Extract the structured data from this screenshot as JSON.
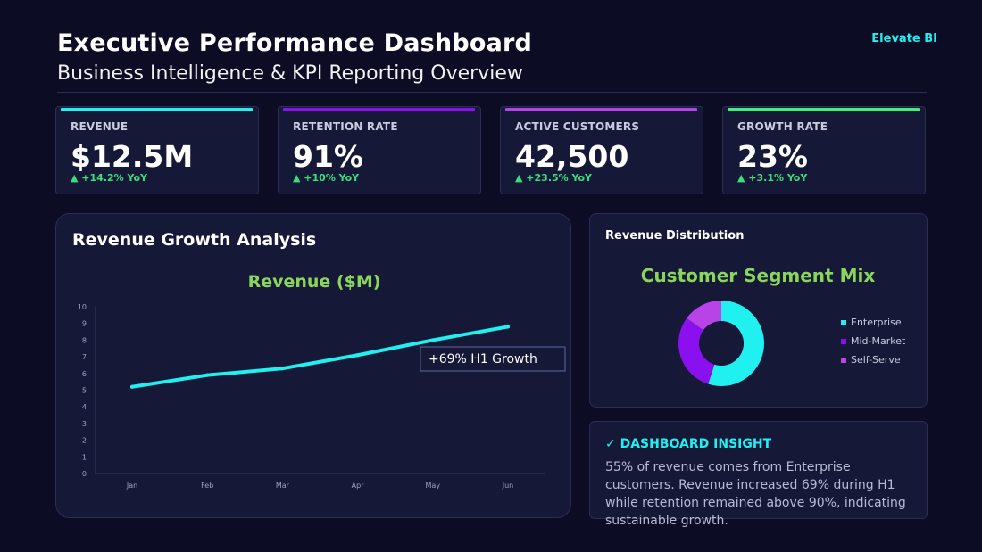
{
  "header": {
    "title": "Executive Performance Dashboard",
    "subtitle": "Business Intelligence & KPI Reporting Overview",
    "brand": "Elevate BI"
  },
  "kpis": [
    {
      "label": "REVENUE",
      "value": "$12.5M",
      "delta": "▲ +14.2% YoY",
      "color": "#21f0f0"
    },
    {
      "label": "RETENTION RATE",
      "value": "91%",
      "delta": "▲ +10% YoY",
      "color": "#8a10f0"
    },
    {
      "label": "ACTIVE CUSTOMERS",
      "value": "42,500",
      "delta": "▲ +23.5% YoY",
      "color": "#b844e8"
    },
    {
      "label": "GROWTH RATE",
      "value": "23%",
      "delta": "▲ +3.1% YoY",
      "color": "#3cf07a"
    }
  ],
  "revenue_panel": {
    "title": "Revenue Growth Analysis",
    "annotation": "+69% H1 Growth"
  },
  "distribution_panel": {
    "title": "Revenue Distribution"
  },
  "insight": {
    "heading": "✓ DASHBOARD INSIGHT",
    "text": "55% of revenue comes from Enterprise customers. Revenue increased 69% during H1 while retention remained above 90%, indicating sustainable growth."
  },
  "chart_data": [
    {
      "type": "line",
      "title": "Revenue ($M)",
      "categories": [
        "Jan",
        "Feb",
        "Mar",
        "Apr",
        "May",
        "Jun"
      ],
      "series": [
        {
          "values": [
            5.2,
            5.9,
            6.3,
            7.1,
            8.0,
            8.8
          ],
          "color": "#21f0f0"
        }
      ],
      "ylim": [
        0,
        10
      ],
      "yticks": [
        0,
        1,
        2,
        3,
        4,
        5,
        6,
        7,
        8,
        9,
        10
      ],
      "grid": false,
      "title_color": "#8ad65a"
    },
    {
      "type": "pie",
      "title": "Customer Segment Mix",
      "donut": true,
      "categories": [
        "Enterprise",
        "Mid-Market",
        "Self-Serve"
      ],
      "values": [
        55,
        30,
        15
      ],
      "colors": [
        "#21f0f0",
        "#8a10f0",
        "#b844e8"
      ],
      "legend": "right",
      "title_color": "#8ad65a"
    }
  ]
}
